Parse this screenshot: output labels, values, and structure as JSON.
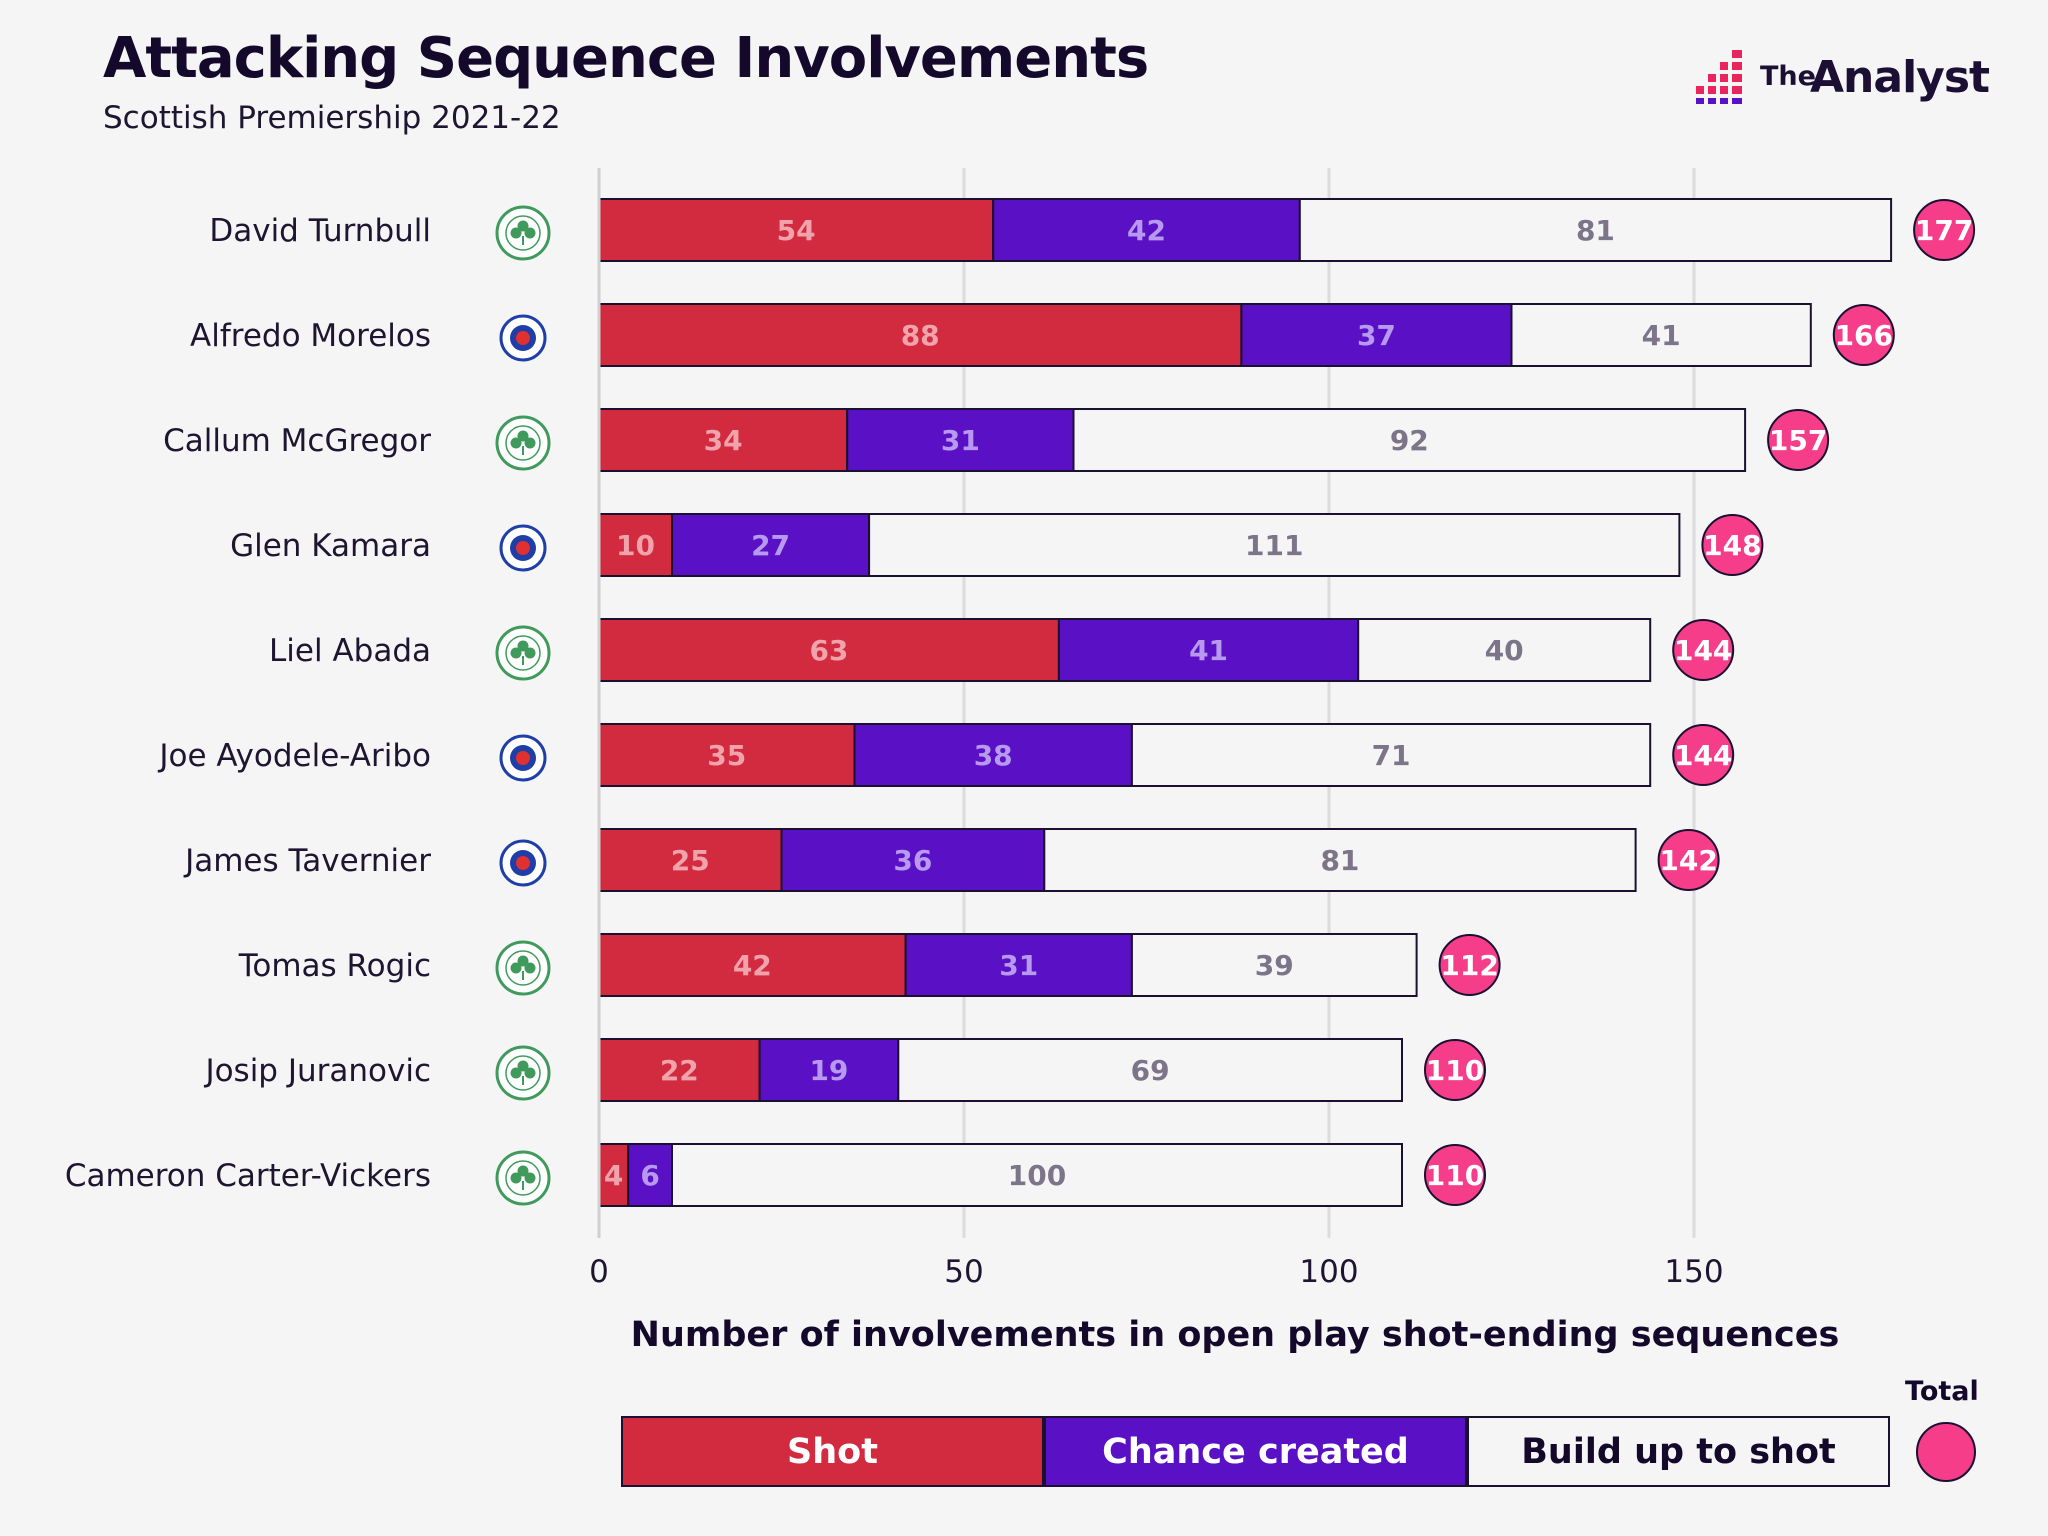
{
  "header": {
    "title": "Attacking Sequence Involvements",
    "subtitle": "Scottish Premiership 2021-22"
  },
  "brand": {
    "the": "The",
    "analyst": "Analyst",
    "logo_icon": "bar-chart-logo-icon"
  },
  "colors": {
    "shot": "#d22a3f",
    "chance": "#5a10c4",
    "buildup": "#f5f5f5",
    "total": "#f53d8a",
    "celtic": "#3f9a5c",
    "rangers": "#1f3ea8"
  },
  "chart_data": {
    "type": "bar",
    "orientation": "horizontal",
    "stacked": true,
    "title": "Attacking Sequence Involvements",
    "subtitle": "Scottish Premiership 2021-22",
    "xlabel": "Number of involvements in open play shot-ending sequences",
    "xlim": [
      0,
      180
    ],
    "xticks": [
      0,
      50,
      100,
      150
    ],
    "grid": "vertical",
    "categories": [
      "David Turnbull",
      "Alfredo Morelos",
      "Callum McGregor",
      "Glen Kamara",
      "Liel Abada",
      "Joe Ayodele-Aribo",
      "James Tavernier",
      "Tomas Rogic",
      "Josip Juranovic",
      "Cameron Carter-Vickers"
    ],
    "team_badges": [
      "celtic",
      "rangers",
      "celtic",
      "rangers",
      "celtic",
      "rangers",
      "rangers",
      "celtic",
      "celtic",
      "celtic"
    ],
    "series": [
      {
        "name": "Shot",
        "values": [
          54,
          88,
          34,
          10,
          63,
          35,
          25,
          42,
          22,
          4
        ]
      },
      {
        "name": "Chance created",
        "values": [
          42,
          37,
          31,
          27,
          41,
          38,
          36,
          31,
          19,
          6
        ]
      },
      {
        "name": "Build up to shot",
        "values": [
          81,
          41,
          92,
          111,
          40,
          71,
          81,
          39,
          69,
          100
        ]
      }
    ],
    "totals": [
      177,
      166,
      157,
      148,
      144,
      144,
      142,
      112,
      110,
      110
    ],
    "legend": {
      "placement": "bottom",
      "total_label": "Total"
    }
  }
}
